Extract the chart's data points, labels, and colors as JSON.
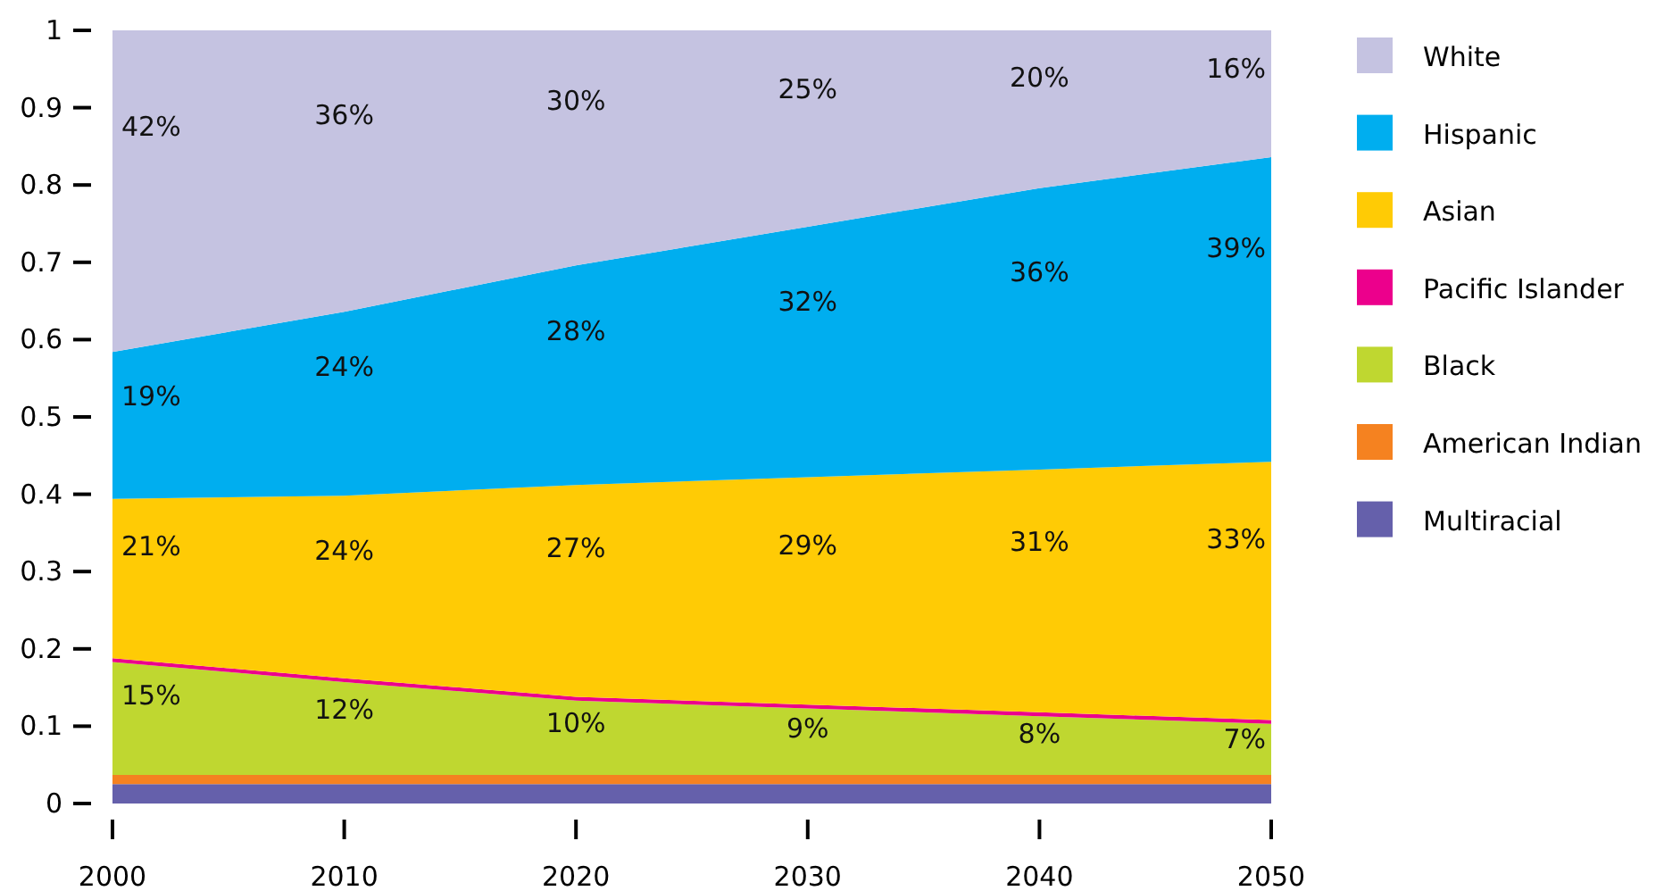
{
  "chart_data": {
    "type": "area",
    "stacked": true,
    "x": [
      2000,
      2010,
      2020,
      2030,
      2040,
      2050
    ],
    "xlim": [
      2000,
      2050
    ],
    "xticks": [
      2000,
      2010,
      2020,
      2030,
      2040,
      2050
    ],
    "ylim": [
      0,
      1
    ],
    "yticks": [
      0,
      0.1,
      0.2,
      0.3,
      0.4,
      0.5,
      0.6,
      0.7,
      0.8,
      0.9,
      1
    ],
    "grid": false,
    "legend": "top right",
    "series": [
      {
        "name": "Multiracial",
        "color": "#6560ab",
        "values": [
          0.025,
          0.025,
          0.025,
          0.025,
          0.025,
          0.025
        ]
      },
      {
        "name": "American Indian",
        "color": "#f58220",
        "values": [
          0.012,
          0.012,
          0.012,
          0.012,
          0.012,
          0.012
        ]
      },
      {
        "name": "Black",
        "color": "#bfd730",
        "values": [
          0.146,
          0.12,
          0.096,
          0.086,
          0.076,
          0.066
        ],
        "value_labels": [
          "15%",
          "12%",
          "10%",
          "9%",
          "8%",
          "7%"
        ]
      },
      {
        "name": "Pacific Islander",
        "color": "#ec008c",
        "values": [
          0.005,
          0.005,
          0.005,
          0.005,
          0.005,
          0.005
        ]
      },
      {
        "name": "Asian",
        "color": "#ffcb05",
        "values": [
          0.206,
          0.236,
          0.274,
          0.294,
          0.314,
          0.334
        ],
        "value_labels": [
          "21%",
          "24%",
          "27%",
          "29%",
          "31%",
          "33%"
        ]
      },
      {
        "name": "Hispanic",
        "color": "#00aeef",
        "values": [
          0.19,
          0.238,
          0.284,
          0.324,
          0.364,
          0.394
        ],
        "value_labels": [
          "19%",
          "24%",
          "28%",
          "32%",
          "36%",
          "39%"
        ]
      },
      {
        "name": "White",
        "color": "#c5c3e1",
        "values": [
          0.416,
          0.364,
          0.304,
          0.254,
          0.204,
          0.164
        ],
        "value_labels": [
          "42%",
          "36%",
          "30%",
          "25%",
          "20%",
          "16%"
        ]
      }
    ]
  }
}
